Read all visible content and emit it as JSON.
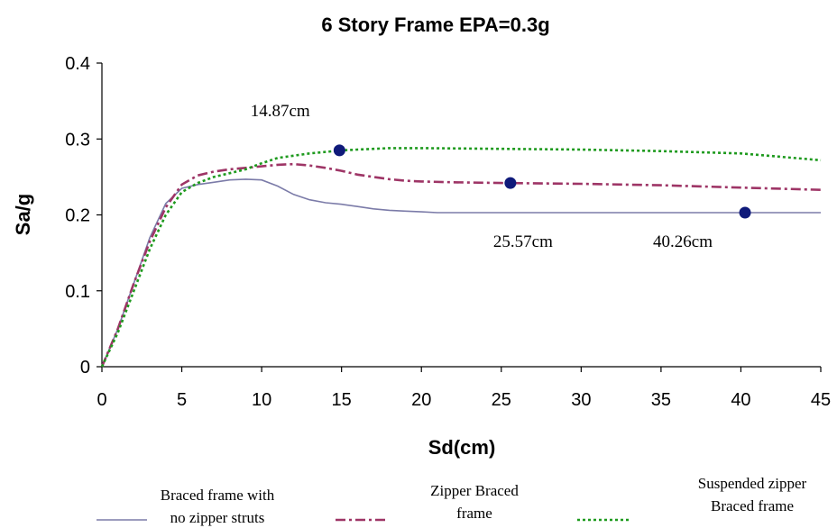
{
  "chart_data": {
    "type": "line",
    "title": "6 Story Frame  EPA=0.3g",
    "xlabel": "Sd(cm)",
    "ylabel": "Sa/g",
    "xlim": [
      0,
      45
    ],
    "ylim": [
      0,
      0.4
    ],
    "xticks": [
      "0",
      "5",
      "10",
      "15",
      "20",
      "25",
      "30",
      "35",
      "40",
      "45"
    ],
    "yticks": [
      "0",
      "0.1",
      "0.2",
      "0.3",
      "0.4"
    ],
    "grid": false,
    "legend_placement": "bottom",
    "series": [
      {
        "name": "Braced frame with no zipper struts",
        "color": "#7b7ba8",
        "style": "solid",
        "points": [
          [
            0,
            0
          ],
          [
            1,
            0.05
          ],
          [
            2,
            0.11
          ],
          [
            3,
            0.17
          ],
          [
            4,
            0.215
          ],
          [
            5,
            0.235
          ],
          [
            6,
            0.24
          ],
          [
            7,
            0.243
          ],
          [
            8,
            0.246
          ],
          [
            9,
            0.247
          ],
          [
            10,
            0.246
          ],
          [
            11,
            0.238
          ],
          [
            12,
            0.227
          ],
          [
            13,
            0.22
          ],
          [
            14,
            0.216
          ],
          [
            15,
            0.214
          ],
          [
            16,
            0.211
          ],
          [
            17,
            0.208
          ],
          [
            18,
            0.206
          ],
          [
            19,
            0.205
          ],
          [
            20,
            0.204
          ],
          [
            21,
            0.203
          ],
          [
            25,
            0.203
          ],
          [
            30,
            0.203
          ],
          [
            35,
            0.203
          ],
          [
            40,
            0.203
          ],
          [
            45,
            0.203
          ]
        ]
      },
      {
        "name": "Zipper Braced frame",
        "color": "#9e3566",
        "style": "dashdot",
        "points": [
          [
            0,
            0
          ],
          [
            1,
            0.05
          ],
          [
            2,
            0.11
          ],
          [
            3,
            0.165
          ],
          [
            4,
            0.21
          ],
          [
            5,
            0.24
          ],
          [
            6,
            0.252
          ],
          [
            7,
            0.257
          ],
          [
            8,
            0.26
          ],
          [
            9,
            0.262
          ],
          [
            10,
            0.264
          ],
          [
            11,
            0.266
          ],
          [
            12,
            0.267
          ],
          [
            13,
            0.265
          ],
          [
            14,
            0.262
          ],
          [
            15,
            0.258
          ],
          [
            16,
            0.253
          ],
          [
            17,
            0.25
          ],
          [
            18,
            0.247
          ],
          [
            19,
            0.245
          ],
          [
            20,
            0.244
          ],
          [
            22,
            0.243
          ],
          [
            25,
            0.242
          ],
          [
            30,
            0.241
          ],
          [
            35,
            0.239
          ],
          [
            40,
            0.236
          ],
          [
            45,
            0.233
          ]
        ]
      },
      {
        "name": "Suspended zipper Braced frame",
        "color": "#1e9a1e",
        "style": "dotted",
        "points": [
          [
            0,
            0
          ],
          [
            1,
            0.045
          ],
          [
            2,
            0.1
          ],
          [
            3,
            0.155
          ],
          [
            4,
            0.2
          ],
          [
            5,
            0.23
          ],
          [
            6,
            0.242
          ],
          [
            7,
            0.25
          ],
          [
            8,
            0.255
          ],
          [
            9,
            0.26
          ],
          [
            10,
            0.268
          ],
          [
            11,
            0.275
          ],
          [
            12,
            0.278
          ],
          [
            13,
            0.281
          ],
          [
            14,
            0.283
          ],
          [
            15,
            0.285
          ],
          [
            16,
            0.286
          ],
          [
            17,
            0.287
          ],
          [
            18,
            0.288
          ],
          [
            20,
            0.288
          ],
          [
            25,
            0.287
          ],
          [
            30,
            0.286
          ],
          [
            35,
            0.284
          ],
          [
            40,
            0.281
          ],
          [
            45,
            0.272
          ]
        ]
      }
    ],
    "markers": [
      {
        "x": 14.87,
        "y": 0.285,
        "color": "#0f1a7a"
      },
      {
        "x": 25.57,
        "y": 0.242,
        "color": "#0f1a7a"
      },
      {
        "x": 40.26,
        "y": 0.203,
        "color": "#0f1a7a"
      }
    ],
    "annotations": [
      {
        "text": "14.87cm",
        "x": 9.3,
        "y": 0.33
      },
      {
        "text": "25.57cm",
        "x": 24.5,
        "y": 0.158
      },
      {
        "text": "40.26cm",
        "x": 34.5,
        "y": 0.158
      }
    ],
    "legend": [
      {
        "lines": [
          "Braced frame with",
          "no zipper struts"
        ]
      },
      {
        "lines": [
          "Zipper Braced",
          "frame"
        ]
      },
      {
        "lines": [
          "Suspended zipper",
          "Braced frame"
        ]
      }
    ]
  }
}
